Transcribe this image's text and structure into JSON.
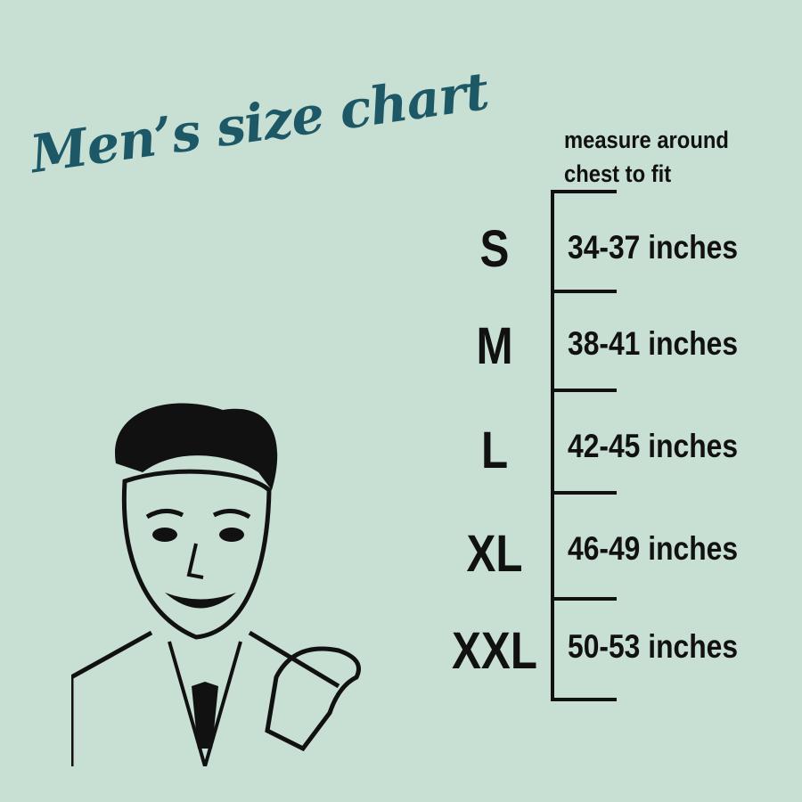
{
  "title": "Men’s size chart",
  "note": {
    "line1": "measure around",
    "line2": "chest to fit"
  },
  "sizes": [
    {
      "label": "S",
      "range": "34-37 inches"
    },
    {
      "label": "M",
      "range": "38-41 inches"
    },
    {
      "label": "L",
      "range": "42-45 inches"
    },
    {
      "label": "XL",
      "range": "46-49 inches"
    },
    {
      "label": "XXL",
      "range": "50-53 inches"
    }
  ],
  "colors": {
    "background": "#c8dfd4",
    "title": "#1d5866",
    "text": "#111111"
  }
}
